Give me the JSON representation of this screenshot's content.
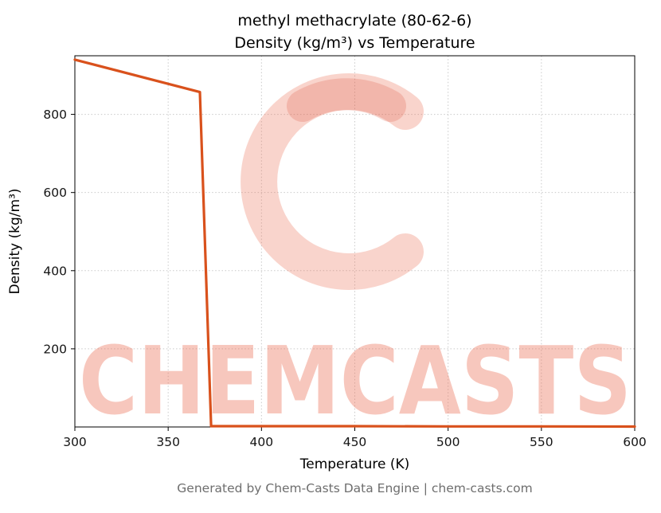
{
  "chart_data": {
    "type": "line",
    "title_line1": "methyl methacrylate (80-62-6)",
    "title_line2": "Density (kg/m³) vs Temperature",
    "xlabel": "Temperature (K)",
    "ylabel": "Density (kg/m³)",
    "xlim": [
      300,
      600
    ],
    "ylim": [
      0,
      950
    ],
    "xticks": [
      300,
      350,
      400,
      450,
      500,
      550,
      600
    ],
    "yticks": [
      200,
      400,
      600,
      800
    ],
    "grid": true,
    "grid_style": "dotted",
    "legend": "none",
    "series": [
      {
        "name": "density",
        "color": "#d9511c",
        "points": [
          [
            300,
            940
          ],
          [
            367,
            857
          ],
          [
            373,
            2
          ],
          [
            400,
            2
          ],
          [
            450,
            2
          ],
          [
            500,
            1.5
          ],
          [
            550,
            1.5
          ],
          [
            600,
            1
          ]
        ]
      }
    ],
    "watermark": {
      "text": "CHEMCASTS",
      "logo": "c-ring-icon",
      "color": "#ec6f55",
      "accent_color": "#d94f35",
      "opacity": 0.38
    }
  },
  "footer": {
    "text": "Generated by Chem-Casts Data Engine | chem-casts.com"
  }
}
